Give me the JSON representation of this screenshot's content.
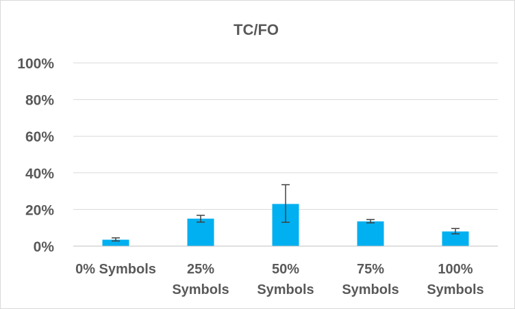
{
  "chart_data": {
    "type": "bar",
    "title": "TC/FO",
    "xlabel": "",
    "ylabel": "",
    "ylim": [
      0,
      100
    ],
    "y_ticks": [
      {
        "value": 0,
        "label": "0%"
      },
      {
        "value": 20,
        "label": "20%"
      },
      {
        "value": 40,
        "label": "40%"
      },
      {
        "value": 60,
        "label": "60%"
      },
      {
        "value": 80,
        "label": "80%"
      },
      {
        "value": 100,
        "label": "100%"
      }
    ],
    "categories": [
      {
        "line1": "0% Symbols",
        "line2": ""
      },
      {
        "line1": "25%",
        "line2": "Symbols"
      },
      {
        "line1": "50%",
        "line2": "Symbols"
      },
      {
        "line1": "75%",
        "line2": "Symbols"
      },
      {
        "line1": "100%",
        "line2": "Symbols"
      }
    ],
    "values": [
      3.5,
      15,
      23,
      13.5,
      8
    ],
    "error_low": [
      2.8,
      13.1,
      13,
      12.7,
      6.7
    ],
    "error_high": [
      4.5,
      16.8,
      33.5,
      14.5,
      9.6
    ],
    "bar_color": "#00b0f0",
    "error_bar_color": "#404040",
    "grid": true,
    "legend": "none"
  }
}
